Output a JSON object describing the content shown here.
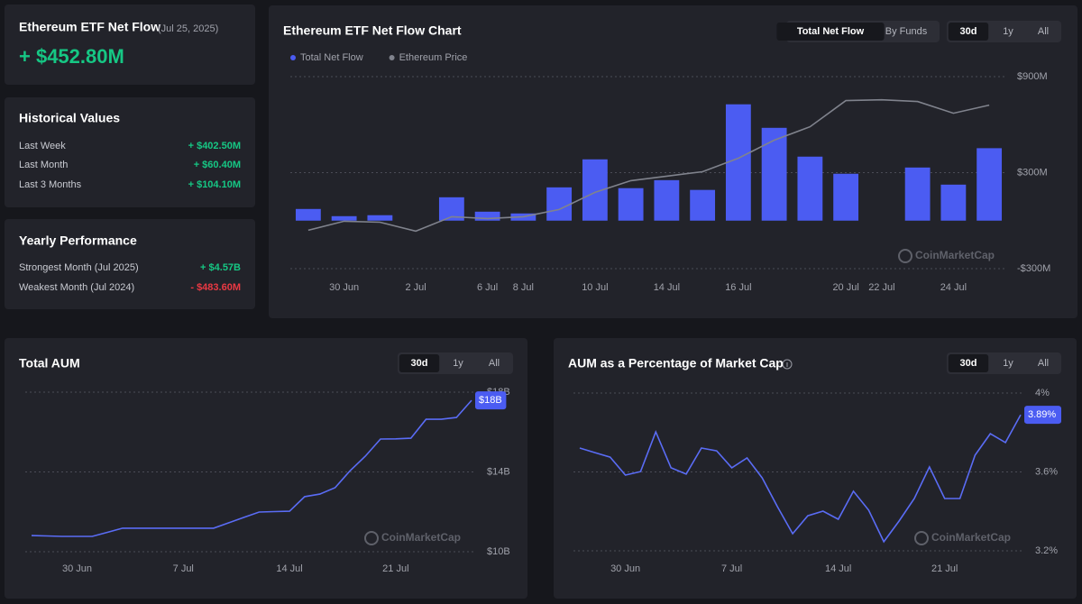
{
  "summary": {
    "title": "Ethereum ETF Net Flow",
    "date": "(Jul 25, 2025)",
    "value": "+ $452.80M"
  },
  "historical": {
    "title": "Historical Values",
    "rows": [
      [
        "Last Week",
        "+ $402.50M"
      ],
      [
        "Last Month",
        "+ $60.40M"
      ],
      [
        "Last 3 Months",
        "+ $104.10M"
      ]
    ]
  },
  "yearly": {
    "title": "Yearly Performance",
    "rows": [
      [
        "Strongest Month (Jul 2025)",
        "+ $4.57B"
      ],
      [
        "Weakest Month (Jul 2024)",
        "- $483.60M"
      ]
    ]
  },
  "watermark": "CoinMarketCap",
  "chart_data": [
    {
      "type": "bar",
      "title": "Ethereum ETF Net Flow Chart",
      "view_buttons": [
        "Total Net Flow",
        "By Funds"
      ],
      "range_buttons": [
        "30d",
        "1y",
        "All"
      ],
      "categories": [
        null,
        "30 Jun",
        null,
        "2 Jul",
        null,
        "6 Jul",
        "8 Jul",
        null,
        "10 Jul",
        null,
        "14 Jul",
        null,
        "16 Jul",
        null,
        null,
        "20 Jul",
        "22 Jul",
        null,
        "24 Jul",
        null
      ],
      "series": [
        {
          "name": "Total Net Flow",
          "color": "#4b5cf2",
          "type": "bar",
          "values": [
            73,
            28,
            34,
            null,
            146,
            56,
            45,
            208,
            383,
            203,
            253,
            192,
            727,
            580,
            400,
            293,
            null,
            332,
            225,
            452.8
          ]
        },
        {
          "name": "Ethereum Price",
          "color": "#80838d",
          "type": "line",
          "axis": "y2",
          "values": [
            2400,
            2494,
            2484,
            2391,
            2541,
            2522,
            2541,
            2616,
            2794,
            2916,
            2963,
            3009,
            3150,
            3338,
            3478,
            3750,
            3759,
            3741,
            3619,
            3703
          ]
        }
      ],
      "ylim": [
        -300,
        900
      ],
      "yticks": [
        {
          "value": -300,
          "label": "-$300M"
        },
        {
          "value": 300,
          "label": "$300M"
        },
        {
          "value": 900,
          "label": "$900M"
        }
      ],
      "y2lim": [
        2000,
        4000
      ],
      "grid": true,
      "legend": "top-left"
    },
    {
      "type": "line",
      "title": "Total AUM",
      "range_buttons": [
        "30d",
        "1y",
        "All"
      ],
      "color": "#5a6cf5",
      "categories": [
        null,
        null,
        null,
        "30 Jun",
        null,
        null,
        null,
        null,
        null,
        null,
        "7 Jul",
        null,
        null,
        null,
        null,
        null,
        null,
        "14 Jul",
        null,
        null,
        null,
        null,
        null,
        null,
        "21 Jul",
        null,
        null,
        null,
        null,
        null
      ],
      "values": [
        10.81,
        10.79,
        10.77,
        10.77,
        10.77,
        10.97,
        11.18,
        11.18,
        11.18,
        11.18,
        11.18,
        11.18,
        11.18,
        11.45,
        11.72,
        11.99,
        12.01,
        12.03,
        12.76,
        12.89,
        13.21,
        14.07,
        14.79,
        15.65,
        15.66,
        15.69,
        16.64,
        16.64,
        16.73,
        17.59
      ],
      "value_labels": [
        null,
        null,
        null,
        null,
        null,
        null,
        null,
        null,
        null,
        null,
        null,
        null,
        null,
        null,
        null,
        null,
        null,
        null,
        null,
        null,
        null,
        null,
        null,
        null,
        null,
        null,
        null,
        null,
        null,
        "$18B"
      ],
      "ylim": [
        10,
        18
      ],
      "yticks": [
        {
          "value": 10,
          "label": "$10B"
        },
        {
          "value": 14,
          "label": "$14B"
        },
        {
          "value": 18,
          "label": "$18B"
        }
      ],
      "grid": true
    },
    {
      "type": "line",
      "title": "AUM as a Percentage of Market Cap",
      "range_buttons": [
        "30d",
        "1y",
        "All"
      ],
      "color": "#5a6cf5",
      "categories": [
        null,
        null,
        null,
        "30 Jun",
        null,
        null,
        null,
        null,
        null,
        null,
        "7 Jul",
        null,
        null,
        null,
        null,
        null,
        null,
        "14 Jul",
        null,
        null,
        null,
        null,
        null,
        null,
        "21 Jul",
        null,
        null,
        null,
        null,
        null
      ],
      "values": [
        3.721,
        3.698,
        3.675,
        3.584,
        3.602,
        3.803,
        3.621,
        3.589,
        3.721,
        3.707,
        3.621,
        3.671,
        3.57,
        3.424,
        3.287,
        3.378,
        3.401,
        3.36,
        3.502,
        3.406,
        3.246,
        3.351,
        3.465,
        3.625,
        3.465,
        3.465,
        3.685,
        3.794,
        3.749,
        3.89
      ],
      "value_labels": [
        null,
        null,
        null,
        null,
        null,
        null,
        null,
        null,
        null,
        null,
        null,
        null,
        null,
        null,
        null,
        null,
        null,
        null,
        null,
        null,
        null,
        null,
        null,
        null,
        null,
        null,
        null,
        null,
        null,
        "3.89%"
      ],
      "ylim": [
        3.2,
        4
      ],
      "yticks": [
        {
          "value": 3.2,
          "label": "3.2%"
        },
        {
          "value": 3.6,
          "label": "3.6%"
        },
        {
          "value": 4,
          "label": "4%"
        }
      ],
      "grid": true
    }
  ]
}
